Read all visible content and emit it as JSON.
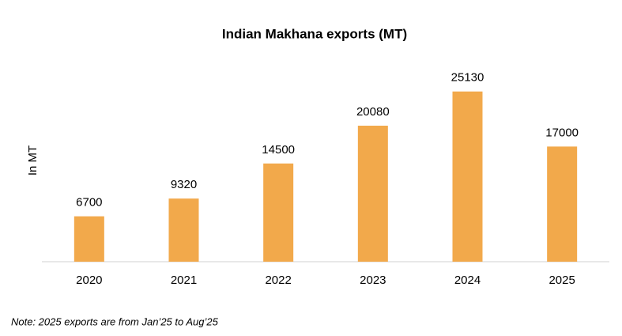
{
  "chart_data": {
    "type": "bar",
    "title": "Indian Makhana exports (MT)",
    "y_label": "In MT",
    "categories": [
      "2020",
      "2021",
      "2022",
      "2023",
      "2024",
      "2025"
    ],
    "values": [
      6700,
      9320,
      14500,
      20080,
      25130,
      17000
    ],
    "color": "#f2a94b",
    "ylim": [
      0,
      30000
    ],
    "note": "Note: 2025 exports are from Jan’25 to Aug’25"
  }
}
